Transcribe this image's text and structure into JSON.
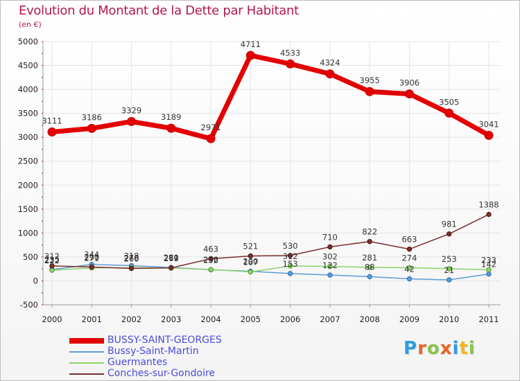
{
  "title": "Evolution du Montant de la Dette par Habitant",
  "subtitle": "(en €)",
  "logo": {
    "letters": [
      "P",
      "r",
      "o",
      "x",
      "i",
      "t",
      "i"
    ],
    "colors": [
      "#2f9be0",
      "#e8662a",
      "#8bc34a",
      "#e8662a",
      "#2f9be0",
      "#f2b91c",
      "#8bc34a"
    ]
  },
  "chart_data": {
    "type": "line",
    "title": "Evolution du Montant de la Dette par Habitant",
    "subtitle": "(en €)",
    "x": [
      "2000",
      "2001",
      "2002",
      "2003",
      "2004",
      "2005",
      "2006",
      "2007",
      "2008",
      "2009",
      "2010",
      "2011"
    ],
    "ylim": [
      -500,
      5000
    ],
    "yticks": [
      "-500",
      "0",
      "500",
      "1000",
      "1500",
      "2000",
      "2500",
      "3000",
      "3500",
      "4000",
      "4500",
      "5000"
    ],
    "grid": true,
    "legend_position": "bottom-left",
    "series": [
      {
        "name": "BUSSY-SAINT-GEORGES",
        "color": "#e30000",
        "values": [
          3111,
          3186,
          3329,
          3189,
          2971,
          4711,
          4533,
          4324,
          3955,
          3906,
          3505,
          3041
        ],
        "labels": [
          "3111",
          "3186",
          "3329",
          "3189",
          "2971",
          "4711",
          "4533",
          "4324",
          "3955",
          "3906",
          "3505",
          "3041"
        ]
      },
      {
        "name": "Bussy-Saint-Martin",
        "color": "#5b9bd5",
        "values": [
          235,
          344,
          318,
          280,
          232,
          200,
          153,
          122,
          88,
          42,
          21,
          142
        ],
        "labels": [
          "235",
          "344",
          "318",
          "280",
          "232",
          "200",
          "153",
          "122",
          "88",
          "42",
          "21",
          "142"
        ]
      },
      {
        "name": "Guermantes",
        "color": "#8fd16a",
        "values": [
          222,
          271,
          276,
          269,
          236,
          187,
          312,
          302,
          281,
          274,
          253,
          233
        ],
        "labels": [
          "222",
          "271",
          "276",
          "269",
          "236",
          "187",
          "312",
          "302",
          "281",
          "274",
          "253",
          "233"
        ]
      },
      {
        "name": "Conches-sur-Gondoire",
        "color": "#7a2e2e",
        "values": [
          312,
          290,
          260,
          271,
          463,
          521,
          530,
          710,
          822,
          663,
          981,
          1388
        ],
        "labels": [
          "312",
          "290",
          "260",
          "271",
          "463",
          "521",
          "530",
          "710",
          "822",
          "663",
          "981",
          "1388"
        ]
      }
    ]
  }
}
